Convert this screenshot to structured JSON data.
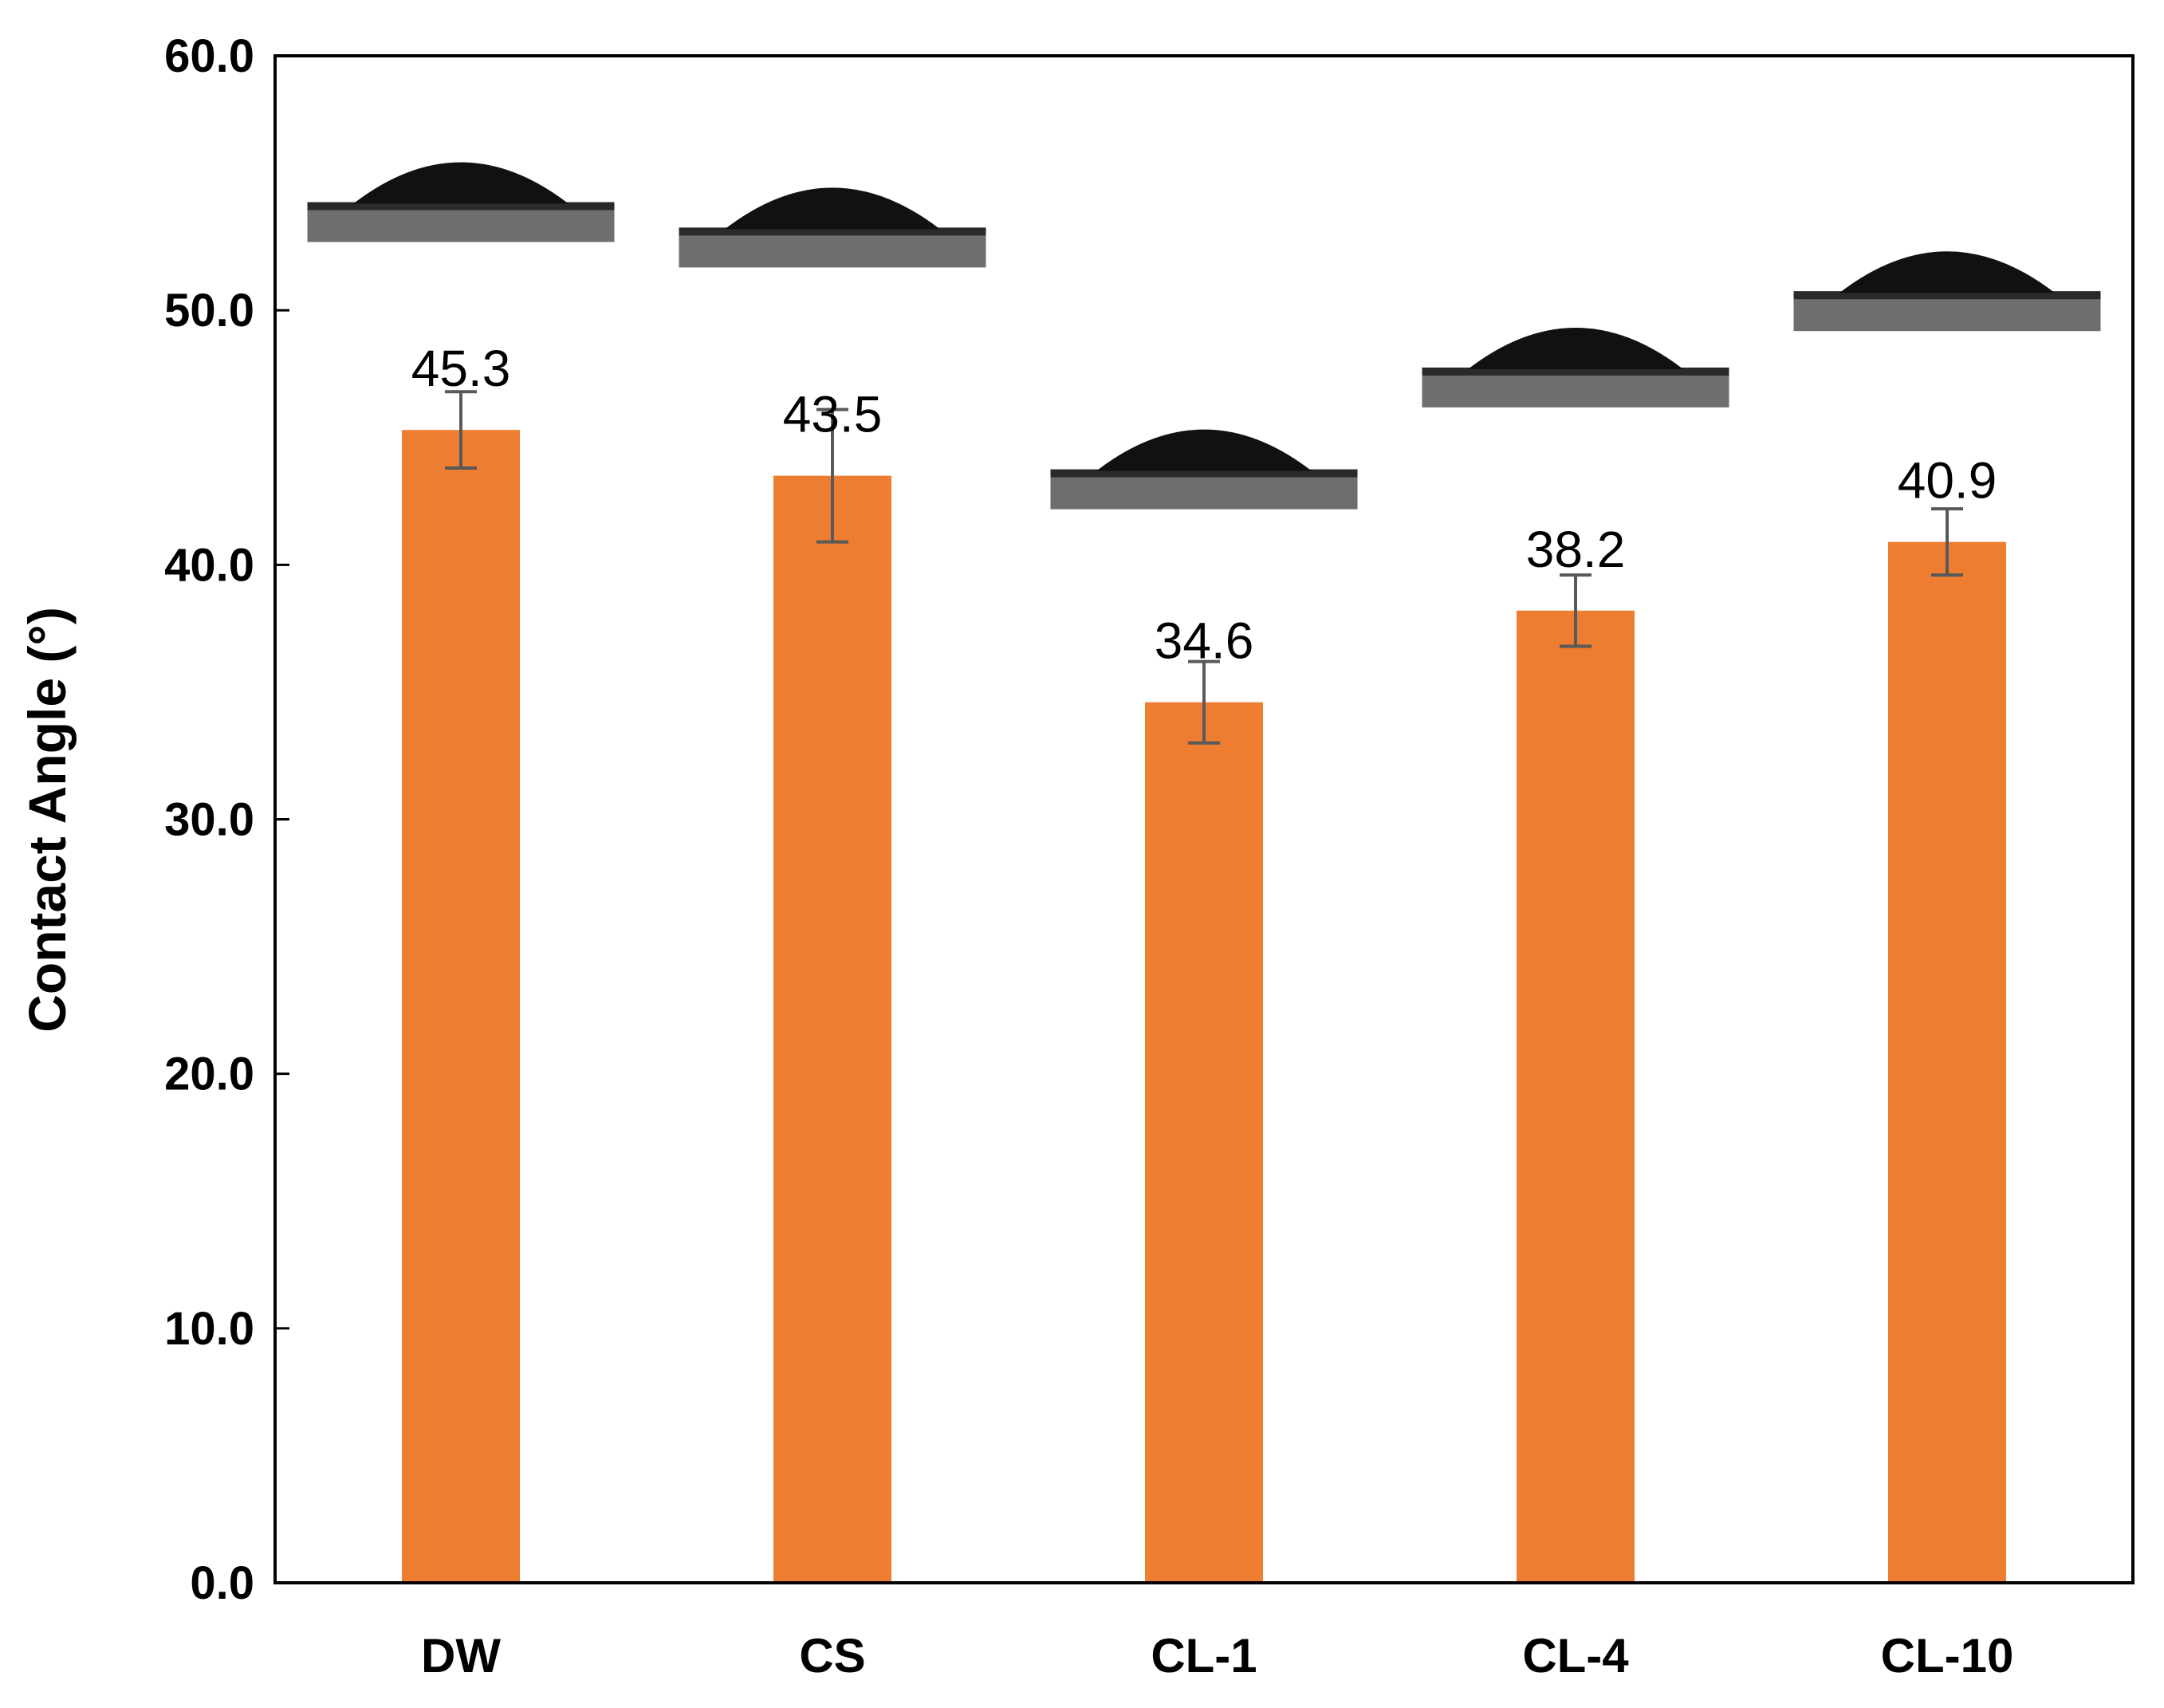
{
  "chart_data": {
    "type": "bar",
    "title": "",
    "xlabel": "",
    "ylabel": "Contact Angle (°)",
    "categories": [
      "DW",
      "CS",
      "CL-1",
      "CL-4",
      "CL-10"
    ],
    "values": [
      45.3,
      43.5,
      34.6,
      38.2,
      40.9
    ],
    "errors": [
      1.5,
      2.6,
      1.6,
      1.4,
      1.3
    ],
    "data_labels": [
      "45.3",
      "43.5",
      "34.6",
      "38.2",
      "40.9"
    ],
    "droplet_heights": [
      54.0,
      53.0,
      43.5,
      47.5,
      50.5
    ],
    "ylim": [
      0,
      60
    ],
    "yticks": [
      0,
      10,
      20,
      30,
      40,
      50,
      60
    ],
    "ytick_labels": [
      "0.0",
      "10.0",
      "20.0",
      "30.0",
      "40.0",
      "50.0",
      "60.0"
    ],
    "grid": false,
    "legend": "none",
    "colors": {
      "bar": "#ed7d31",
      "error_bar": "#595959",
      "axis": "#000000",
      "droplet": "#111111",
      "substrate": "#6e6e6e"
    }
  }
}
